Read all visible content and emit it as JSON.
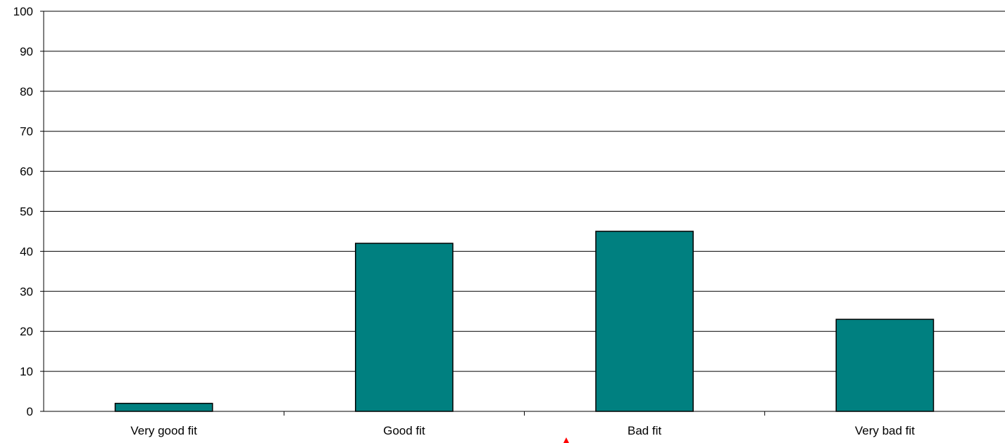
{
  "chart_data": {
    "type": "bar",
    "categories": [
      "Very good fit",
      "Good fit",
      "Bad fit",
      "Very bad fit"
    ],
    "values": [
      2,
      42,
      45,
      23
    ],
    "ylim": [
      0,
      100
    ],
    "yticks": [
      0,
      10,
      20,
      30,
      40,
      50,
      60,
      70,
      80,
      90,
      100
    ],
    "grid": true,
    "legend": "none",
    "title": "",
    "xlabel": "",
    "ylabel": "",
    "colors": {
      "bar": "#008080",
      "bar_border": "#000000",
      "grid": "#000000",
      "marker": "#ff0000"
    }
  }
}
